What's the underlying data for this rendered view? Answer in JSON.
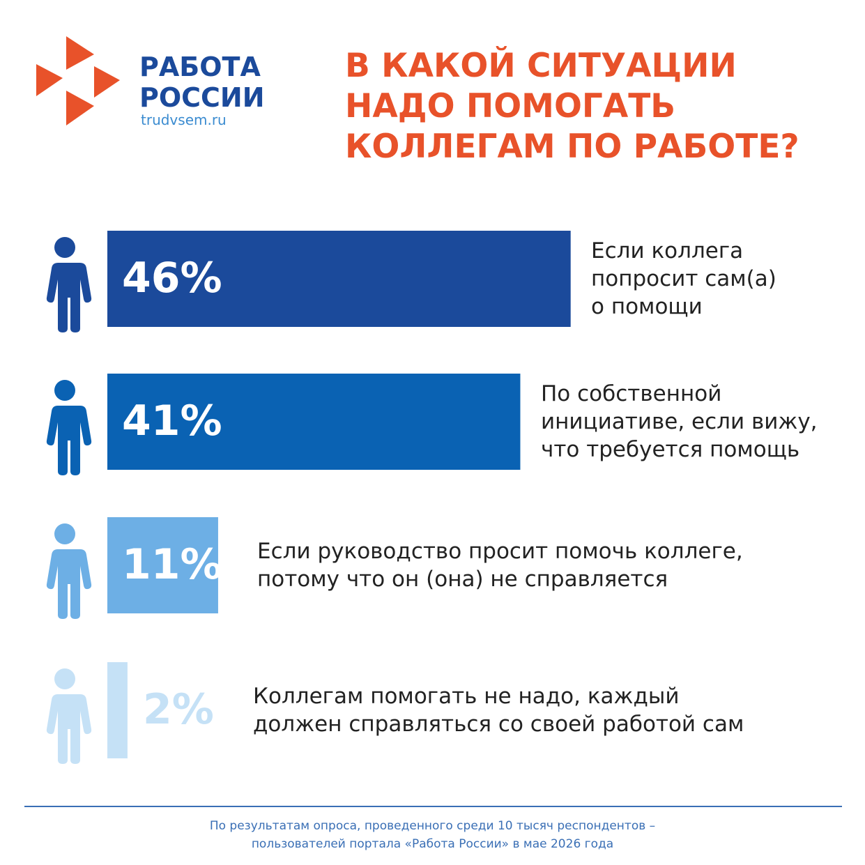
{
  "logo": {
    "name": "РАБОТА\nРОССИИ",
    "site": "trudvsem.ru"
  },
  "chart_data": {
    "type": "bar",
    "title": "В КАКОЙ СИТУАЦИИ\nНАДО ПОМОГАТЬ\nКОЛЛЕГАМ ПО РАБОТЕ?",
    "categories": [
      "Если коллега\nпопросит сам(а)\nо помощи",
      "По собственной\nинициативе, если вижу,\nчто требуется помощь",
      "Если руководство просит помочь коллеге,\nпотому что он (она) не справляется",
      "Коллегам помогать не надо, каждый\nдолжен справляться со своей работой сам"
    ],
    "values": [
      46,
      41,
      11,
      2
    ],
    "value_labels": [
      "46%",
      "41%",
      "11%",
      "2%"
    ],
    "colors": [
      "#1b4a9b",
      "#0a62b3",
      "#6dafe5",
      "#c5e1f6"
    ],
    "note": "По результатам опроса, проведенного среди 10 тысяч респондентов –\nпользователей портала «Работа России» в мае 2026 года"
  }
}
